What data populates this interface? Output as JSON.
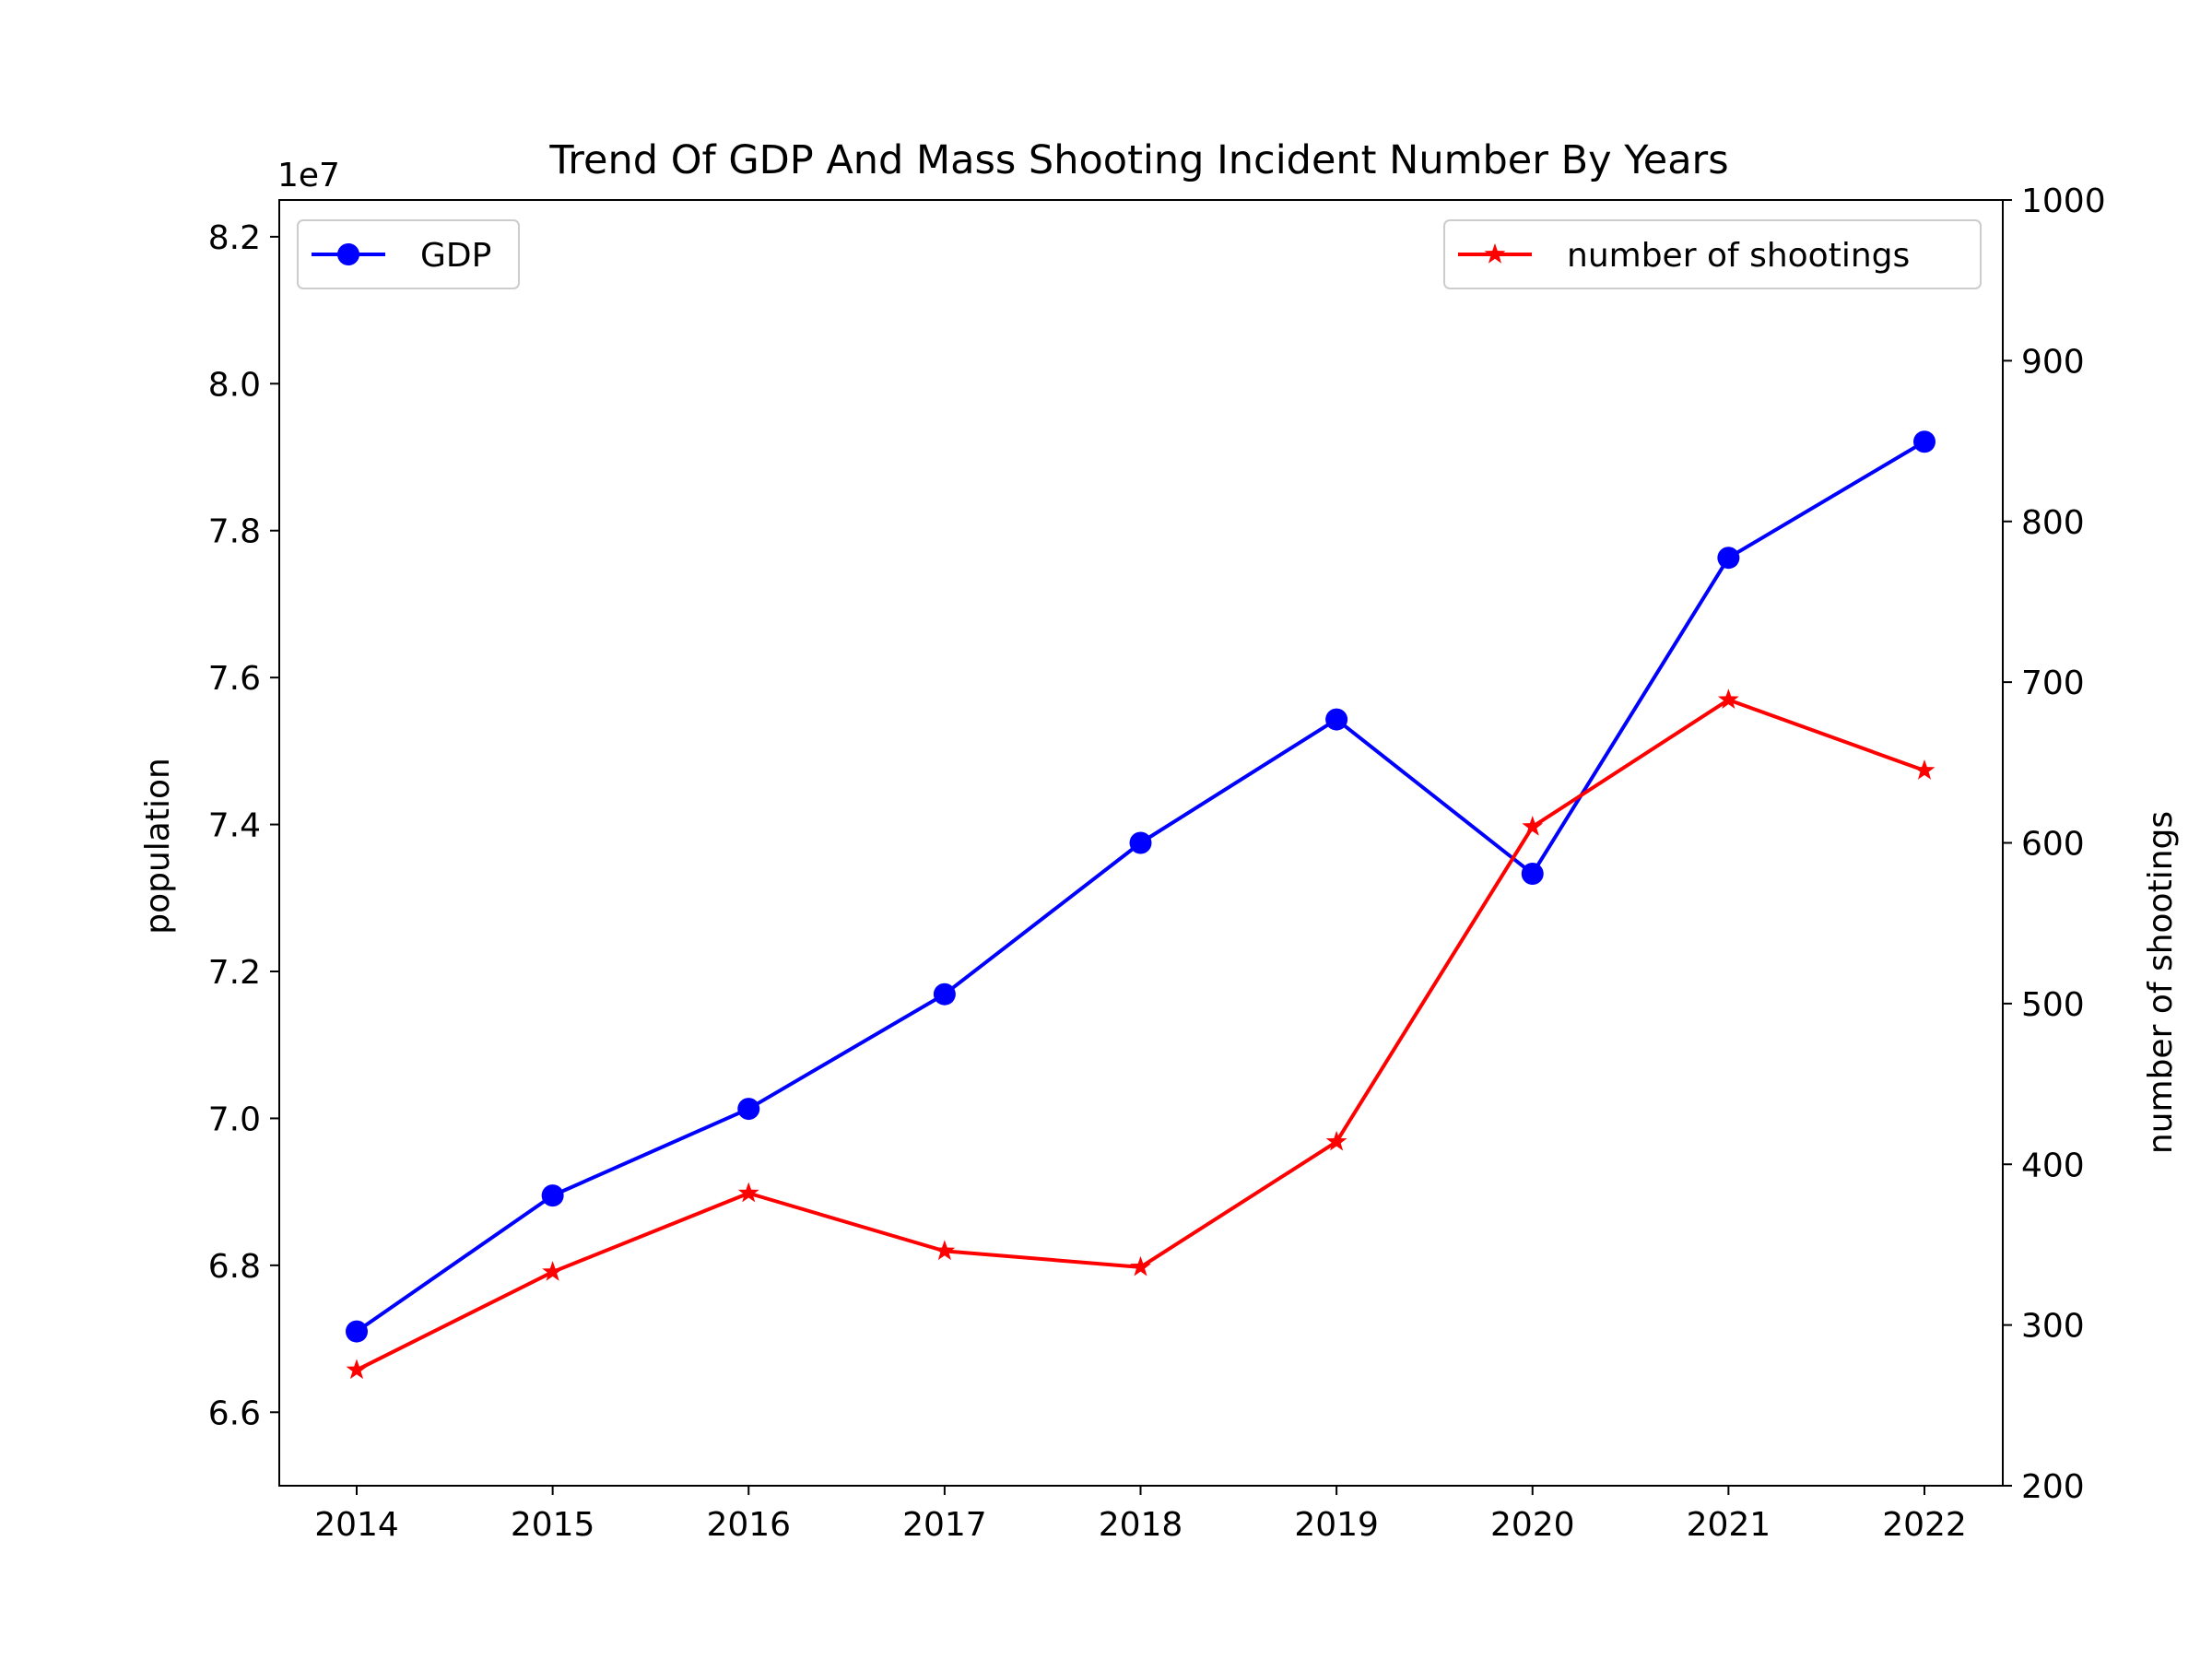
{
  "chart_data": {
    "type": "line",
    "title": "Trend Of GDP And Mass Shooting Incident Number By Years",
    "xlabel": "",
    "x": [
      2014,
      2015,
      2016,
      2017,
      2018,
      2019,
      2020,
      2021,
      2022
    ],
    "x_ticks": [
      "2014",
      "2015",
      "2016",
      "2017",
      "2018",
      "2019",
      "2020",
      "2021",
      "2022"
    ],
    "grid": false,
    "left_axis": {
      "label": "population",
      "offset_text": "1e7",
      "ylim": [
        6.5,
        8.25
      ],
      "ticks": [
        6.6,
        6.8,
        7.0,
        7.2,
        7.4,
        7.6,
        7.8,
        8.0,
        8.2
      ],
      "tick_labels": [
        "6.6",
        "6.8",
        "7.0",
        "7.2",
        "7.4",
        "7.6",
        "7.8",
        "8.0",
        "8.2"
      ]
    },
    "right_axis": {
      "label": "number of shootings",
      "ylim": [
        200,
        1000
      ],
      "ticks": [
        200,
        300,
        400,
        500,
        600,
        700,
        800,
        900,
        1000
      ],
      "tick_labels": [
        "200",
        "300",
        "400",
        "500",
        "600",
        "700",
        "800",
        "900",
        "1000"
      ]
    },
    "series": [
      {
        "name": "GDP",
        "axis": "left",
        "color": "#0000ff",
        "marker": "circle",
        "values": [
          6.71,
          6.895,
          7.013,
          7.169,
          7.375,
          7.543,
          7.333,
          7.763,
          7.921
        ]
      },
      {
        "name": "number of shootings",
        "axis": "right",
        "color": "#ff0000",
        "marker": "star",
        "values": [
          272,
          333,
          382,
          346,
          336,
          414,
          610,
          689,
          645
        ]
      }
    ],
    "legends": [
      {
        "series": "GDP",
        "placement": "upper-left"
      },
      {
        "series": "number of shootings",
        "placement": "upper-right"
      }
    ]
  }
}
